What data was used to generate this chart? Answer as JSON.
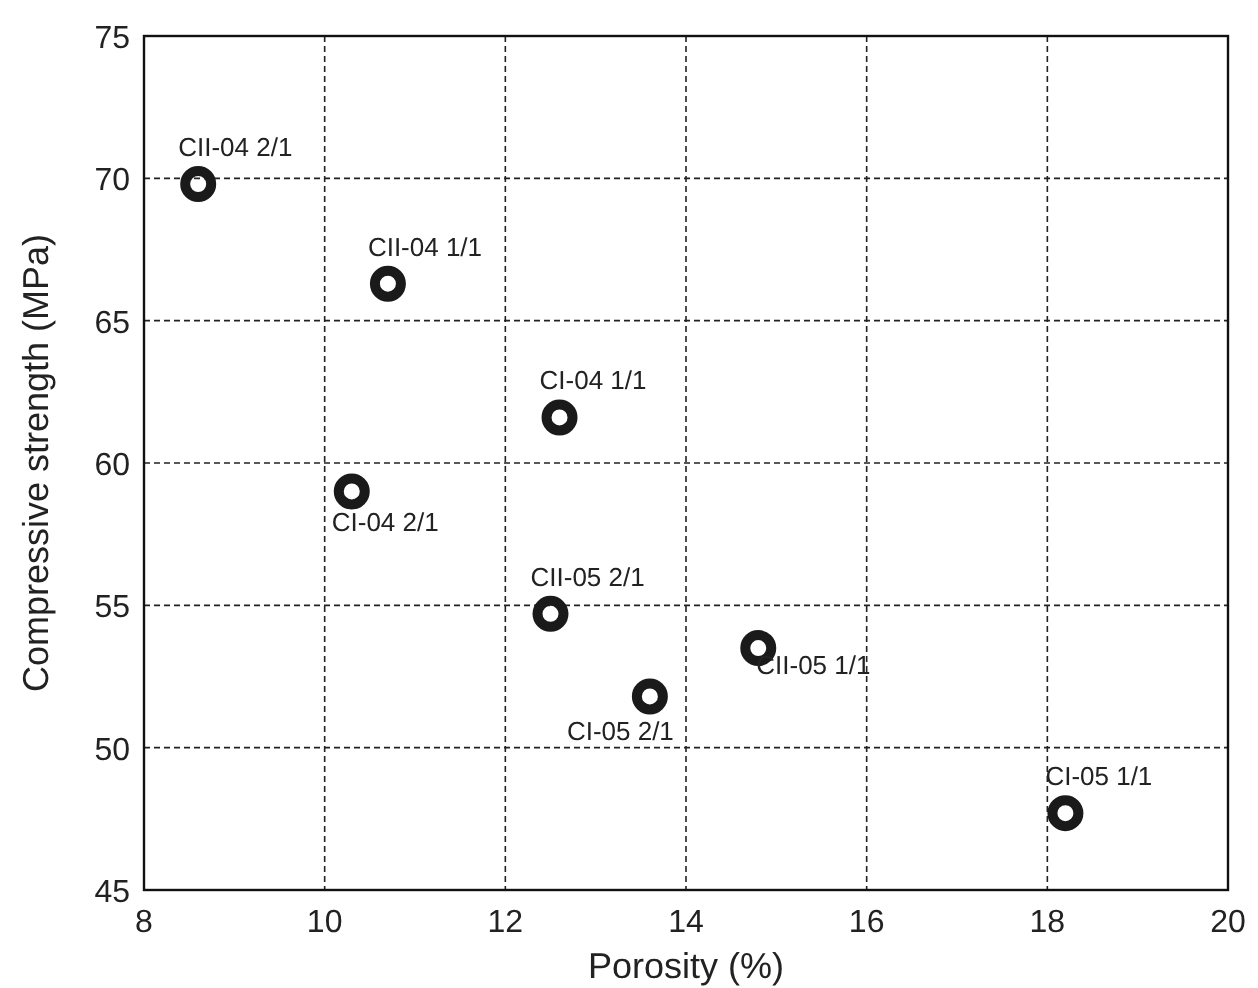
{
  "chart_data": {
    "type": "scatter",
    "xlabel": "Porosity (%)",
    "ylabel": "Compressive strength (MPa)",
    "xlim": [
      8,
      20
    ],
    "xticks": [
      8,
      10,
      12,
      14,
      16,
      18,
      20
    ],
    "ylim": [
      45,
      75
    ],
    "yticks": [
      45,
      50,
      55,
      60,
      65,
      70,
      75
    ],
    "grid": true,
    "marker": "circle",
    "series": [
      {
        "color": "#1a1a1a",
        "x": [
          8.6,
          10.7,
          12.6,
          10.3,
          12.5,
          14.8,
          13.6,
          18.2
        ],
        "values": [
          69.8,
          66.3,
          61.6,
          59.0,
          54.7,
          53.5,
          51.8,
          47.7
        ]
      }
    ],
    "annotations": [
      {
        "text": "CII-04 2/1",
        "x": 8.6,
        "y": 69.8
      },
      {
        "text": "CII-04 1/1",
        "x": 10.7,
        "y": 66.3
      },
      {
        "text": "CI-04 1/1",
        "x": 12.6,
        "y": 61.6
      },
      {
        "text": "CI-04 2/1",
        "x": 10.3,
        "y": 59.0
      },
      {
        "text": "CII-05 2/1",
        "x": 12.5,
        "y": 54.7
      },
      {
        "text": "CII-05 1/1",
        "x": 14.8,
        "y": 53.5
      },
      {
        "text": "CI-05 2/1",
        "x": 13.6,
        "y": 51.8
      },
      {
        "text": "CI-05 1/1",
        "x": 18.2,
        "y": 47.7
      }
    ]
  }
}
